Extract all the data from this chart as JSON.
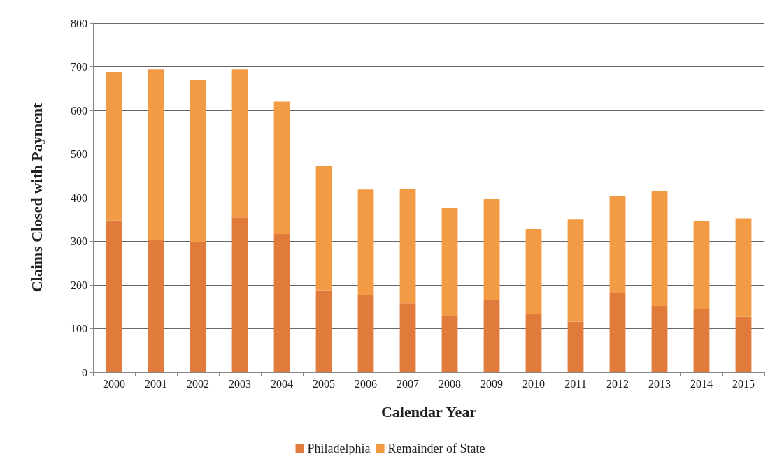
{
  "chart_data": {
    "type": "bar",
    "stacked": true,
    "xlabel": "Calendar Year",
    "ylabel": "Claims Closed with Payment",
    "categories": [
      "2000",
      "2001",
      "2002",
      "2003",
      "2004",
      "2005",
      "2006",
      "2007",
      "2008",
      "2009",
      "2010",
      "2011",
      "2012",
      "2013",
      "2014",
      "2015"
    ],
    "series": [
      {
        "name": "Philadelphia",
        "color": "#e07b3c",
        "values": [
          348,
          303,
          298,
          355,
          317,
          188,
          177,
          158,
          129,
          165,
          134,
          116,
          182,
          152,
          144,
          127
        ]
      },
      {
        "name": "Remainder of State",
        "color": "#f39a45",
        "values": [
          340,
          391,
          372,
          339,
          303,
          285,
          242,
          263,
          247,
          232,
          194,
          234,
          223,
          264,
          203,
          226
        ]
      }
    ],
    "ylim": [
      0,
      800
    ],
    "yticks": [
      0,
      100,
      200,
      300,
      400,
      500,
      600,
      700,
      800
    ],
    "grid": "y",
    "legend": "bottom"
  }
}
